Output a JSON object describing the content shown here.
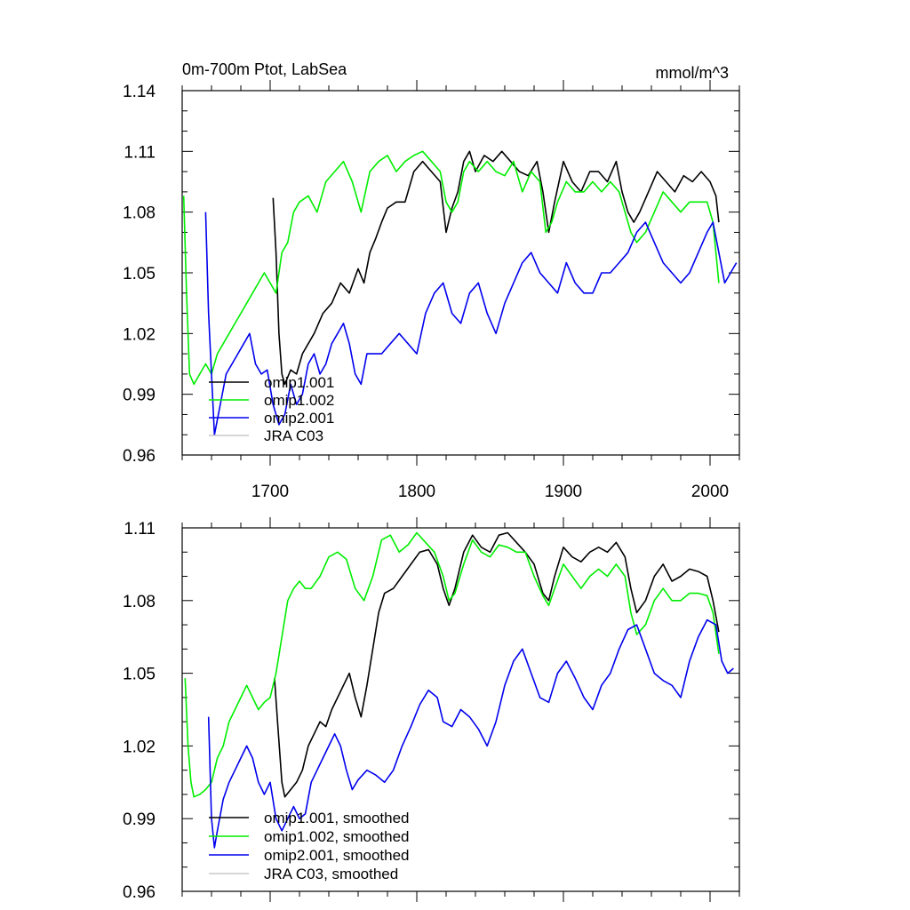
{
  "chart_data": [
    {
      "type": "line",
      "title": "0m-700m Ptot, LabSea",
      "units": "mmol/m^3",
      "xlabel": "",
      "ylabel": "",
      "xlim": [
        1640,
        2020
      ],
      "ylim": [
        0.96,
        1.14
      ],
      "xticks": [
        1700,
        1800,
        1900,
        2000
      ],
      "yticks": [
        0.96,
        0.99,
        1.02,
        1.05,
        1.08,
        1.11,
        1.14
      ],
      "ytick_labels": [
        "0.96",
        "0.99",
        "1.02",
        "1.05",
        "1.08",
        "1.11",
        "1.14"
      ],
      "legend_position": "bottom-left",
      "series": [
        {
          "name": "omip1.001",
          "color": "#000000",
          "x": [
            1702,
            1704,
            1706,
            1708,
            1710,
            1714,
            1718,
            1722,
            1726,
            1730,
            1736,
            1742,
            1748,
            1754,
            1760,
            1764,
            1768,
            1772,
            1776,
            1780,
            1786,
            1792,
            1798,
            1804,
            1810,
            1816,
            1820,
            1824,
            1828,
            1832,
            1836,
            1840,
            1846,
            1852,
            1858,
            1864,
            1870,
            1876,
            1882,
            1886,
            1890,
            1894,
            1900,
            1906,
            1912,
            1918,
            1924,
            1930,
            1936,
            1940,
            1944,
            1948,
            1952,
            1958,
            1964,
            1970,
            1976,
            1982,
            1988,
            1994,
            2000,
            2004,
            2006
          ],
          "values": [
            1.087,
            1.06,
            1.02,
            1.0,
            0.995,
            1.002,
            1.0,
            1.01,
            1.015,
            1.02,
            1.03,
            1.035,
            1.045,
            1.04,
            1.052,
            1.045,
            1.06,
            1.067,
            1.075,
            1.082,
            1.085,
            1.085,
            1.1,
            1.105,
            1.1,
            1.095,
            1.07,
            1.082,
            1.09,
            1.105,
            1.11,
            1.1,
            1.108,
            1.105,
            1.11,
            1.105,
            1.1,
            1.098,
            1.105,
            1.09,
            1.07,
            1.085,
            1.105,
            1.095,
            1.09,
            1.1,
            1.1,
            1.095,
            1.105,
            1.09,
            1.08,
            1.075,
            1.08,
            1.09,
            1.1,
            1.095,
            1.09,
            1.098,
            1.095,
            1.1,
            1.095,
            1.088,
            1.075
          ]
        },
        {
          "name": "omip1.002",
          "color": "#00ee00",
          "x": [
            1641,
            1643,
            1645,
            1648,
            1652,
            1656,
            1660,
            1664,
            1668,
            1672,
            1676,
            1680,
            1684,
            1688,
            1692,
            1696,
            1700,
            1704,
            1708,
            1712,
            1716,
            1720,
            1726,
            1732,
            1738,
            1744,
            1750,
            1756,
            1762,
            1768,
            1774,
            1780,
            1786,
            1792,
            1798,
            1804,
            1810,
            1816,
            1820,
            1824,
            1828,
            1832,
            1836,
            1842,
            1848,
            1854,
            1860,
            1866,
            1872,
            1878,
            1884,
            1888,
            1892,
            1896,
            1902,
            1908,
            1914,
            1920,
            1926,
            1932,
            1938,
            1942,
            1946,
            1950,
            1956,
            1962,
            1968,
            1974,
            1980,
            1986,
            1992,
            1998,
            2002,
            2006
          ],
          "values": [
            1.088,
            1.04,
            1.0,
            0.995,
            1.0,
            1.005,
            1.0,
            1.01,
            1.015,
            1.02,
            1.025,
            1.03,
            1.035,
            1.04,
            1.045,
            1.05,
            1.045,
            1.04,
            1.06,
            1.065,
            1.08,
            1.085,
            1.088,
            1.08,
            1.095,
            1.1,
            1.105,
            1.095,
            1.08,
            1.1,
            1.105,
            1.108,
            1.1,
            1.105,
            1.108,
            1.11,
            1.105,
            1.1,
            1.085,
            1.08,
            1.085,
            1.1,
            1.105,
            1.1,
            1.105,
            1.1,
            1.098,
            1.105,
            1.09,
            1.1,
            1.095,
            1.07,
            1.075,
            1.085,
            1.095,
            1.09,
            1.09,
            1.095,
            1.09,
            1.095,
            1.09,
            1.08,
            1.07,
            1.065,
            1.07,
            1.08,
            1.09,
            1.085,
            1.08,
            1.085,
            1.085,
            1.085,
            1.075,
            1.045
          ]
        },
        {
          "name": "omip2.001",
          "color": "#0000ee",
          "x": [
            1656,
            1658,
            1660,
            1662,
            1666,
            1670,
            1674,
            1678,
            1682,
            1686,
            1690,
            1694,
            1698,
            1702,
            1706,
            1710,
            1714,
            1718,
            1722,
            1726,
            1730,
            1734,
            1738,
            1742,
            1746,
            1750,
            1754,
            1758,
            1762,
            1766,
            1770,
            1776,
            1782,
            1788,
            1794,
            1800,
            1806,
            1812,
            1818,
            1824,
            1830,
            1836,
            1842,
            1848,
            1854,
            1860,
            1866,
            1872,
            1878,
            1884,
            1890,
            1896,
            1902,
            1908,
            1914,
            1920,
            1926,
            1932,
            1938,
            1944,
            1950,
            1956,
            1962,
            1968,
            1974,
            1980,
            1986,
            1992,
            1998,
            2002,
            2006,
            2010,
            2014,
            2018
          ],
          "values": [
            1.08,
            1.03,
            1.0,
            0.97,
            0.985,
            1.0,
            1.005,
            1.01,
            1.015,
            1.02,
            1.005,
            1.0,
            1.002,
            0.985,
            0.975,
            0.98,
            0.995,
            0.985,
            0.99,
            1.005,
            1.01,
            1.0,
            1.005,
            1.015,
            1.02,
            1.025,
            1.015,
            1.0,
            0.995,
            1.01,
            1.01,
            1.01,
            1.015,
            1.02,
            1.015,
            1.01,
            1.03,
            1.04,
            1.045,
            1.03,
            1.025,
            1.04,
            1.045,
            1.03,
            1.02,
            1.035,
            1.045,
            1.055,
            1.06,
            1.05,
            1.045,
            1.04,
            1.055,
            1.045,
            1.04,
            1.04,
            1.05,
            1.05,
            1.055,
            1.06,
            1.07,
            1.075,
            1.065,
            1.055,
            1.05,
            1.045,
            1.05,
            1.06,
            1.07,
            1.075,
            1.06,
            1.045,
            1.05,
            1.055
          ]
        },
        {
          "name": "JRA C03",
          "color": "#c8c8c8",
          "x": [],
          "values": []
        }
      ]
    },
    {
      "type": "line",
      "title": "",
      "xlabel": "",
      "ylabel": "",
      "xlim": [
        1640,
        2020
      ],
      "ylim": [
        0.96,
        1.11
      ],
      "xticks": [
        1700,
        1800,
        1900,
        2000
      ],
      "yticks": [
        0.96,
        0.99,
        1.02,
        1.05,
        1.08,
        1.11
      ],
      "ytick_labels": [
        "0.96",
        "0.99",
        "1.02",
        "1.05",
        "1.08",
        "1.11"
      ],
      "legend_position": "bottom-left",
      "series": [
        {
          "name": "omip1.001, smoothed",
          "color": "#000000",
          "x": [
            1703,
            1705,
            1708,
            1710,
            1714,
            1718,
            1722,
            1726,
            1730,
            1734,
            1738,
            1742,
            1746,
            1750,
            1754,
            1758,
            1762,
            1766,
            1770,
            1774,
            1778,
            1784,
            1790,
            1796,
            1802,
            1808,
            1814,
            1818,
            1822,
            1826,
            1832,
            1838,
            1844,
            1850,
            1856,
            1862,
            1868,
            1874,
            1880,
            1886,
            1890,
            1894,
            1900,
            1906,
            1912,
            1918,
            1924,
            1930,
            1936,
            1942,
            1946,
            1950,
            1956,
            1962,
            1968,
            1974,
            1980,
            1986,
            1992,
            1998,
            2002,
            2006
          ],
          "values": [
            1.048,
            1.03,
            1.005,
            0.999,
            1.002,
            1.005,
            1.01,
            1.02,
            1.025,
            1.03,
            1.028,
            1.035,
            1.04,
            1.045,
            1.05,
            1.04,
            1.032,
            1.045,
            1.06,
            1.075,
            1.083,
            1.085,
            1.09,
            1.095,
            1.1,
            1.101,
            1.095,
            1.085,
            1.078,
            1.085,
            1.1,
            1.107,
            1.102,
            1.1,
            1.107,
            1.108,
            1.104,
            1.1,
            1.095,
            1.083,
            1.08,
            1.09,
            1.102,
            1.098,
            1.096,
            1.1,
            1.102,
            1.1,
            1.104,
            1.098,
            1.085,
            1.075,
            1.08,
            1.09,
            1.095,
            1.088,
            1.09,
            1.093,
            1.092,
            1.09,
            1.08,
            1.067
          ]
        },
        {
          "name": "omip1.002, smoothed",
          "color": "#00ee00",
          "x": [
            1642,
            1644,
            1646,
            1648,
            1652,
            1656,
            1660,
            1664,
            1668,
            1672,
            1676,
            1680,
            1684,
            1688,
            1692,
            1696,
            1700,
            1704,
            1708,
            1712,
            1716,
            1720,
            1724,
            1728,
            1734,
            1740,
            1746,
            1752,
            1758,
            1764,
            1770,
            1776,
            1782,
            1788,
            1794,
            1800,
            1806,
            1812,
            1818,
            1822,
            1826,
            1832,
            1838,
            1844,
            1850,
            1856,
            1862,
            1868,
            1874,
            1880,
            1886,
            1890,
            1894,
            1900,
            1906,
            1912,
            1918,
            1924,
            1930,
            1936,
            1942,
            1946,
            1950,
            1956,
            1962,
            1968,
            1974,
            1980,
            1986,
            1992,
            1998,
            2002,
            2006
          ],
          "values": [
            1.048,
            1.02,
            1.005,
            0.999,
            1.0,
            1.002,
            1.005,
            1.015,
            1.02,
            1.03,
            1.035,
            1.04,
            1.045,
            1.04,
            1.035,
            1.038,
            1.04,
            1.05,
            1.065,
            1.08,
            1.085,
            1.088,
            1.085,
            1.085,
            1.09,
            1.098,
            1.1,
            1.097,
            1.085,
            1.08,
            1.09,
            1.105,
            1.107,
            1.1,
            1.103,
            1.108,
            1.104,
            1.1,
            1.09,
            1.08,
            1.083,
            1.095,
            1.105,
            1.1,
            1.098,
            1.103,
            1.102,
            1.1,
            1.1,
            1.09,
            1.082,
            1.078,
            1.085,
            1.095,
            1.09,
            1.085,
            1.09,
            1.093,
            1.09,
            1.095,
            1.09,
            1.075,
            1.066,
            1.07,
            1.08,
            1.085,
            1.08,
            1.08,
            1.083,
            1.083,
            1.082,
            1.075,
            1.058
          ]
        },
        {
          "name": "omip2.001, smoothed",
          "color": "#0000ee",
          "x": [
            1658,
            1660,
            1662,
            1664,
            1668,
            1672,
            1676,
            1680,
            1684,
            1688,
            1692,
            1696,
            1700,
            1704,
            1708,
            1712,
            1716,
            1720,
            1724,
            1728,
            1732,
            1736,
            1740,
            1744,
            1748,
            1752,
            1756,
            1760,
            1766,
            1772,
            1778,
            1784,
            1790,
            1796,
            1802,
            1808,
            1814,
            1818,
            1824,
            1830,
            1836,
            1842,
            1848,
            1854,
            1860,
            1866,
            1872,
            1878,
            1884,
            1890,
            1896,
            1902,
            1908,
            1914,
            1920,
            1926,
            1932,
            1938,
            1944,
            1950,
            1956,
            1962,
            1968,
            1974,
            1980,
            1986,
            1992,
            1998,
            2004,
            2008,
            2012,
            2016
          ],
          "values": [
            1.032,
            0.99,
            0.978,
            0.985,
            0.998,
            1.005,
            1.01,
            1.015,
            1.02,
            1.015,
            1.005,
            1.0,
            1.005,
            0.99,
            0.985,
            0.99,
            0.995,
            0.99,
            0.992,
            1.005,
            1.01,
            1.015,
            1.02,
            1.025,
            1.02,
            1.01,
            1.002,
            1.006,
            1.01,
            1.008,
            1.005,
            1.01,
            1.02,
            1.028,
            1.037,
            1.043,
            1.04,
            1.03,
            1.028,
            1.035,
            1.032,
            1.027,
            1.02,
            1.03,
            1.045,
            1.055,
            1.06,
            1.05,
            1.04,
            1.038,
            1.05,
            1.055,
            1.048,
            1.04,
            1.035,
            1.045,
            1.05,
            1.06,
            1.068,
            1.07,
            1.06,
            1.05,
            1.047,
            1.045,
            1.04,
            1.055,
            1.065,
            1.072,
            1.07,
            1.055,
            1.05,
            1.052
          ]
        },
        {
          "name": "JRA C03, smoothed",
          "color": "#c8c8c8",
          "x": [],
          "values": []
        }
      ]
    }
  ]
}
